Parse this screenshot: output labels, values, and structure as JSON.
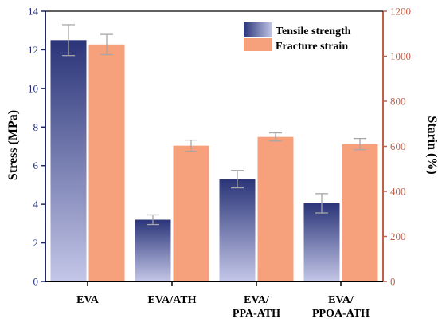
{
  "chart_data": {
    "type": "bar",
    "categories": [
      [
        "EVA"
      ],
      [
        "EVA/ATH"
      ],
      [
        "EVA/",
        "PPA-ATH"
      ],
      [
        "EVA/",
        "PPOA-ATH"
      ]
    ],
    "series": [
      {
        "name": "Tensile strength",
        "axis": "left",
        "values": [
          12.5,
          3.2,
          5.3,
          4.05
        ],
        "errors": [
          0.8,
          0.25,
          0.45,
          0.5
        ]
      },
      {
        "name": "Fracture strain",
        "axis": "right",
        "values": [
          1052,
          603,
          642,
          610
        ],
        "errors": [
          45,
          25,
          18,
          25
        ]
      }
    ],
    "ylabel_left": "Stress (MPa)",
    "ylabel_right": "Starin (%)",
    "ylim_left": [
      0,
      14
    ],
    "ylim_right": [
      0,
      1200
    ],
    "yticks_left": [
      0,
      2,
      4,
      6,
      8,
      10,
      12,
      14
    ],
    "yticks_right": [
      0,
      200,
      400,
      600,
      800,
      1000,
      1200
    ],
    "legend_position": "top-right",
    "grid": false
  },
  "colors": {
    "left_axis": "#1f2a6e",
    "right_axis": "#c0614a",
    "tensile_top": "#2a3478",
    "tensile_bottom": "#c4c7e8",
    "fracture": "#f7a07c",
    "error_bar": "#a6a6a6"
  }
}
